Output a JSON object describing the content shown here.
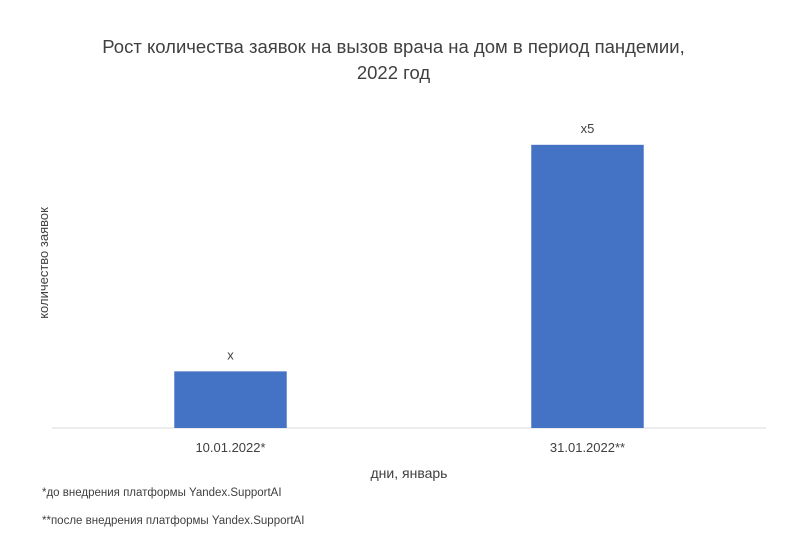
{
  "chart_data": {
    "type": "bar",
    "title_lines": [
      "Рост количества заявок на вызов врача на дом в период пандемии,",
      "2022 год"
    ],
    "categories": [
      "10.01.2022*",
      "31.01.2022**"
    ],
    "values": [
      1,
      5
    ],
    "data_labels": [
      "x",
      "x5"
    ],
    "xlabel": "дни, январь",
    "ylabel": "количество заявок",
    "ylim": [
      0,
      5.65
    ],
    "grid": false,
    "legend": "none",
    "bar_color": "#4472C4",
    "axis_color": "#D9D9D9"
  },
  "footnotes": [
    "*до внедрения платформы Yandex.SupportAI",
    "**после внедрения платформы Yandex.SupportAI"
  ]
}
